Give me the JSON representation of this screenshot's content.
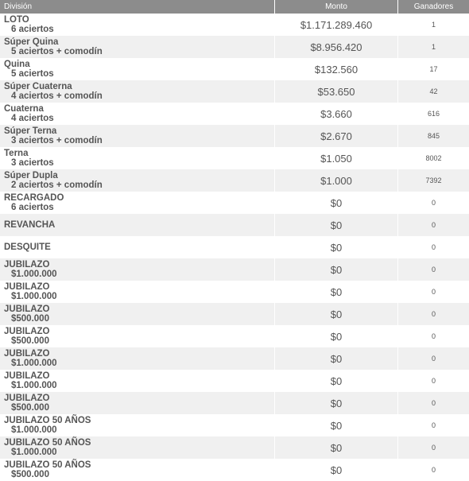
{
  "table": {
    "header": [
      "División",
      "Monto",
      "Ganadores"
    ],
    "rows": [
      [
        "LOTO",
        "6 aciertos",
        "$1.171.289.460",
        "1"
      ],
      [
        "Súper Quina",
        "5 aciertos + comodín",
        "$8.956.420",
        "1"
      ],
      [
        "Quina",
        "5 aciertos",
        "$132.560",
        "17"
      ],
      [
        "Súper Cuaterna",
        "4 aciertos + comodín",
        "$53.650",
        "42"
      ],
      [
        "Cuaterna",
        "4 aciertos",
        "$3.660",
        "616"
      ],
      [
        "Súper Terna",
        "3 aciertos + comodín",
        "$2.670",
        "845"
      ],
      [
        "Terna",
        "3 aciertos",
        "$1.050",
        "8002"
      ],
      [
        "Súper Dupla",
        "2 aciertos + comodín",
        "$1.000",
        "7392"
      ],
      [
        "RECARGADO",
        "6 aciertos",
        "$0",
        "0"
      ],
      [
        "REVANCHA",
        null,
        "$0",
        "0"
      ],
      [
        "DESQUITE",
        null,
        "$0",
        "0"
      ],
      [
        "JUBILAZO",
        "$1.000.000",
        "$0",
        "0"
      ],
      [
        "JUBILAZO",
        "$1.000.000",
        "$0",
        "0"
      ],
      [
        "JUBILAZO",
        "$500.000",
        "$0",
        "0"
      ],
      [
        "JUBILAZO",
        "$500.000",
        "$0",
        "0"
      ],
      [
        "JUBILAZO",
        "$1.000.000",
        "$0",
        "0"
      ],
      [
        "JUBILAZO",
        "$1.000.000",
        "$0",
        "0"
      ],
      [
        "JUBILAZO",
        "$500.000",
        "$0",
        "0"
      ],
      [
        "JUBILAZO 50 AÑOS",
        "$1.000.000",
        "$0",
        "0"
      ],
      [
        "JUBILAZO 50 AÑOS",
        "$1.000.000",
        "$0",
        "0"
      ],
      [
        "JUBILAZO 50 AÑOS",
        "$500.000",
        "$0",
        "0"
      ]
    ]
  }
}
